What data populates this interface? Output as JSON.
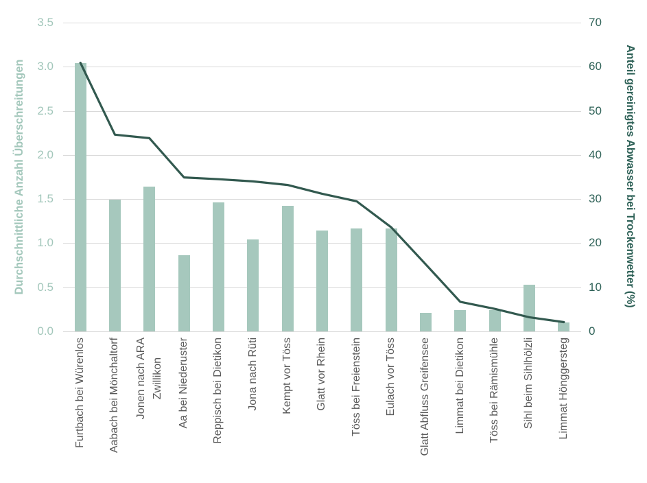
{
  "chart_data": {
    "type": "bar",
    "subtype": "combo-bar-line-dual-axis",
    "title": "",
    "legend": "none",
    "background": "#ffffff",
    "grid": {
      "show": true,
      "color": "#d9d9d9"
    },
    "categories": [
      "Furtbach bei Würenlos",
      "Aabach bei Mönchaltorf",
      "Jonen nach ARA\nZwillikon",
      "Aa bei Niederuster",
      "Reppisch bei Dietikon",
      "Jona nach Rüti",
      "Kempt vor Töss",
      "Glatt vor Rhein",
      "Töss bei Freienstein",
      "Eulach vor Töss",
      "Glatt Abfluss Greifensee",
      "Limmat bei Dietikon",
      "Töss bei Rämismühle",
      "Sihl beim Sihlhölzli",
      "Limmat Hönggersteg"
    ],
    "category_label_color": "#595959",
    "series": [
      {
        "name": "Durchschnittliche Anzahl Überschreitungen",
        "type": "bar",
        "axis": "left",
        "color": "#a6c8bd",
        "values": [
          3.04,
          1.49,
          1.64,
          0.86,
          1.46,
          1.04,
          1.42,
          1.14,
          1.17,
          1.17,
          0.21,
          0.24,
          0.24,
          0.53,
          0.1
        ]
      },
      {
        "name": "Anteil gereinigtes Abwasser bei Trockenwetter (%)",
        "type": "line",
        "axis": "right",
        "color": "#32594f",
        "values": [
          60.9,
          44.6,
          43.8,
          34.9,
          34.5,
          34.0,
          33.2,
          31.2,
          29.5,
          23.6,
          15.2,
          6.7,
          5.1,
          3.2,
          2.1
        ]
      }
    ],
    "left_axis": {
      "title": "Durchschnittliche Anzahl Überschreitungen",
      "min": 0,
      "max": 3.5,
      "ticks": [
        "3.5",
        "3.0",
        "2.5",
        "2.0",
        "1.5",
        "1.0",
        "0.5",
        "0.0"
      ],
      "color": "#a3c7bb"
    },
    "right_axis": {
      "title": "Anteil gereinigtes Abwasser bei Trockenwetter (%)",
      "min": 0,
      "max": 70,
      "ticks": [
        "70",
        "60",
        "50",
        "40",
        "30",
        "20",
        "10",
        "0"
      ],
      "color": "#2e6157"
    }
  }
}
